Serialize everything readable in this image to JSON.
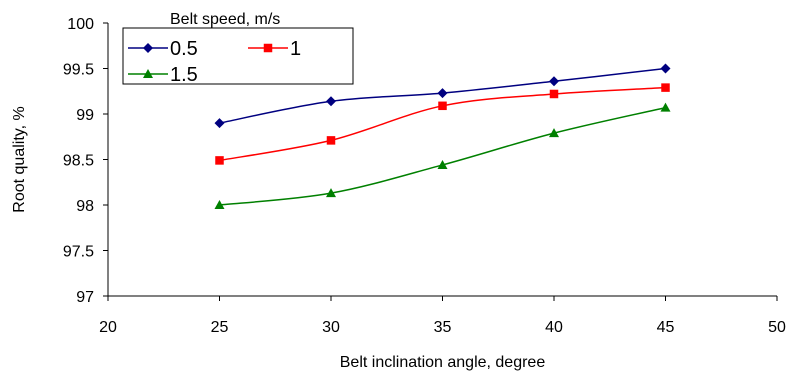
{
  "chart_data": {
    "type": "line",
    "xlabel": "Belt inclination angle, degree",
    "ylabel": "Root quality, %",
    "xlim": [
      20,
      50
    ],
    "ylim": [
      97,
      100
    ],
    "x_ticks": [
      "20",
      "25",
      "30",
      "35",
      "40",
      "45",
      "50"
    ],
    "y_ticks": [
      "97",
      "97.5",
      "98",
      "98.5",
      "99",
      "99.5",
      "100"
    ],
    "grid": false,
    "legend": {
      "title": "Belt speed, m/s",
      "placement": "top-left"
    },
    "x": [
      25,
      30,
      35,
      40,
      45
    ],
    "series": [
      {
        "name": "0.5",
        "values": [
          98.9,
          99.14,
          99.23,
          99.36,
          99.5
        ],
        "color": "#000080",
        "marker": "diamond"
      },
      {
        "name": "1",
        "values": [
          98.49,
          98.71,
          99.09,
          99.22,
          99.29
        ],
        "color": "#ff0000",
        "marker": "square"
      },
      {
        "name": "1.5",
        "values": [
          98.0,
          98.13,
          98.44,
          98.79,
          99.07
        ],
        "color": "#008000",
        "marker": "triangle"
      }
    ]
  }
}
